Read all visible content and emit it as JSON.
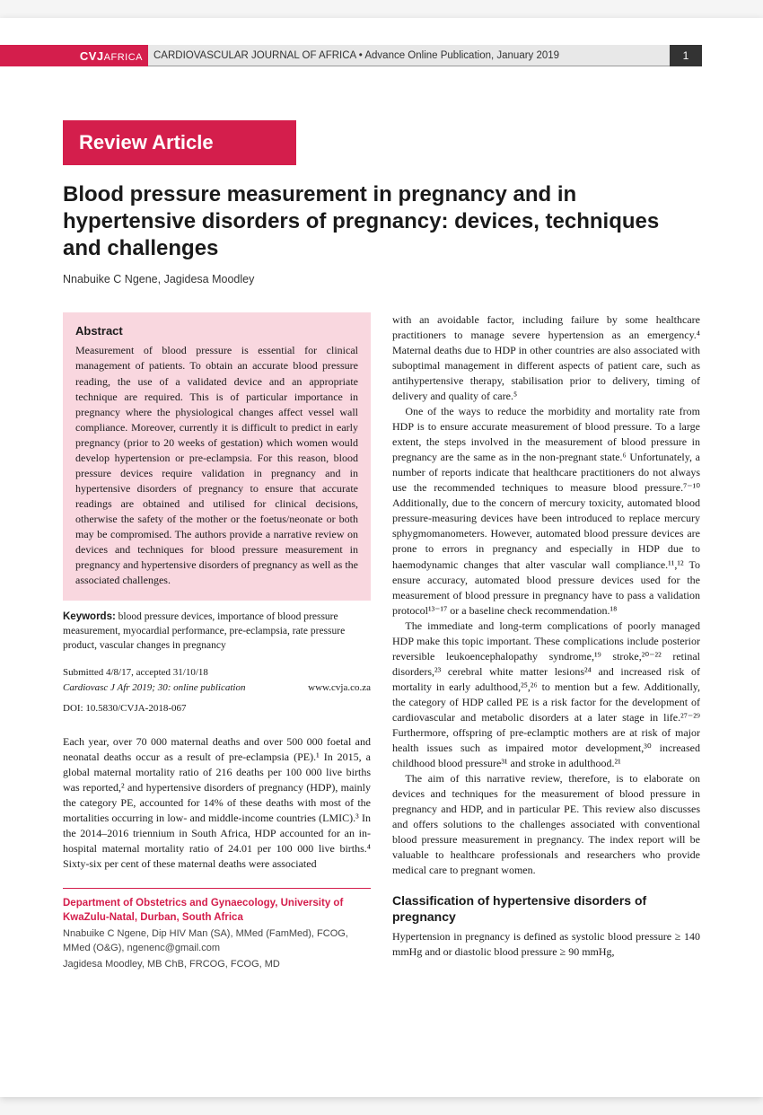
{
  "header": {
    "brand_cvj": "CVJ",
    "brand_africa": "AFRICA",
    "journal_info": "CARDIOVASCULAR JOURNAL OF AFRICA • Advance Online Publication, January 2019",
    "page_number": "1"
  },
  "article_type": "Review Article",
  "title": "Blood pressure measurement in pregnancy and in hypertensive disorders of pregnancy: devices, techniques and challenges",
  "authors": "Nnabuike C Ngene, Jagidesa Moodley",
  "abstract": {
    "heading": "Abstract",
    "text": "Measurement of blood pressure is essential for clinical management of patients. To obtain an accurate blood pressure reading, the use of a validated device and an appropriate technique are required. This is of particular importance in pregnancy where the physiological changes affect vessel wall compliance. Moreover, currently it is difficult to predict in early pregnancy (prior to 20 weeks of gestation) which women would develop hypertension or pre-eclampsia. For this reason, blood pressure devices require validation in pregnancy and in hypertensive disorders of pregnancy to ensure that accurate readings are obtained and utilised for clinical decisions, otherwise the safety of the mother or the foetus/neonate or both may be compromised. The authors provide a narrative review on devices and techniques for blood pressure measurement in pregnancy and hypertensive disorders of pregnancy as well as the associated challenges."
  },
  "keywords_label": "Keywords:",
  "keywords": "blood pressure devices, importance of blood pressure measurement, myocardial performance, pre-eclampsia, rate pressure product, vascular changes in pregnancy",
  "submission": {
    "dates": "Submitted 4/8/17, accepted 31/10/18",
    "citation": "Cardiovasc J Afr 2019; 30: online publication",
    "url": "www.cvja.co.za",
    "doi": "DOI: 10.5830/CVJA-2018-067"
  },
  "col1": {
    "p1": "Each year, over 70 000 maternal deaths and over 500 000 foetal and neonatal deaths occur as a result of pre-eclampsia (PE).¹ In 2015, a global maternal mortality ratio of 216 deaths per 100 000 live births was reported,² and hypertensive disorders of pregnancy (HDP), mainly the category PE, accounted for 14% of these deaths with most of the mortalities occurring in low- and middle-income countries (LMIC).³ In the 2014–2016 triennium in South Africa, HDP accounted for an in-hospital maternal mortality ratio of 24.01 per 100 000 live births.⁴ Sixty-six per cent of these maternal deaths were associated"
  },
  "col2": {
    "p1": "with an avoidable factor, including failure by some healthcare practitioners to manage severe hypertension as an emergency.⁴ Maternal deaths due to HDP in other countries are also associated with suboptimal management in different aspects of patient care, such as antihypertensive therapy, stabilisation prior to delivery, timing of delivery and quality of care.⁵",
    "p2": "One of the ways to reduce the morbidity and mortality rate from HDP is to ensure accurate measurement of blood pressure. To a large extent, the steps involved in the measurement of blood pressure in pregnancy are the same as in the non-pregnant state.⁶ Unfortunately, a number of reports indicate that healthcare practitioners do not always use the recommended techniques to measure blood pressure.⁷⁻¹⁰ Additionally, due to the concern of mercury toxicity, automated blood pressure-measuring devices have been introduced to replace mercury sphygmomanometers. However, automated blood pressure devices are prone to errors in pregnancy and especially in HDP due to haemodynamic changes that alter vascular wall compliance.¹¹,¹² To ensure accuracy, automated blood pressure devices used for the measurement of blood pressure in pregnancy have to pass a validation protocol¹³⁻¹⁷ or a baseline check recommendation.¹⁸",
    "p3": "The immediate and long-term complications of poorly managed HDP make this topic important. These complications include posterior reversible leukoencephalopathy syndrome,¹⁹ stroke,²⁰⁻²² retinal disorders,²³ cerebral white matter lesions²⁴ and increased risk of mortality in early adulthood,²⁵,²⁶ to mention but a few. Additionally, the category of HDP called PE is a risk factor for the development of cardiovascular and metabolic disorders at a later stage in life.²⁷⁻²⁹ Furthermore, offspring of pre-eclamptic mothers are at risk of major health issues such as impaired motor development,³⁰ increased childhood blood pressure³¹ and stroke in adulthood.²¹",
    "p4": "The aim of this narrative review, therefore, is to elaborate on devices and techniques for the measurement of blood pressure in pregnancy and HDP, and in particular PE. This review also discusses and offers solutions to the challenges associated with conventional blood pressure measurement in pregnancy. The index report will be valuable to healthcare professionals and researchers who provide medical care to pregnant women.",
    "section_heading": "Classification of hypertensive disorders of pregnancy",
    "p5": "Hypertension in pregnancy is defined as systolic blood pressure ≥ 140 mmHg and or diastolic blood pressure ≥ 90 mmHg,"
  },
  "department": {
    "name": "Department of Obstetrics and Gynaecology, University of KwaZulu-Natal, Durban, South Africa",
    "auth1": "Nnabuike C Ngene, Dip HIV Man (SA), MMed (FamMed), FCOG, MMed (O&G), ngenenc@gmail.com",
    "auth2": "Jagidesa Moodley, MB ChB, FRCOG, FCOG, MD"
  },
  "colors": {
    "accent": "#d41e4c",
    "abstract_bg": "#f9d7df",
    "header_gray": "#e8e8e8",
    "page_num_bg": "#333333"
  }
}
